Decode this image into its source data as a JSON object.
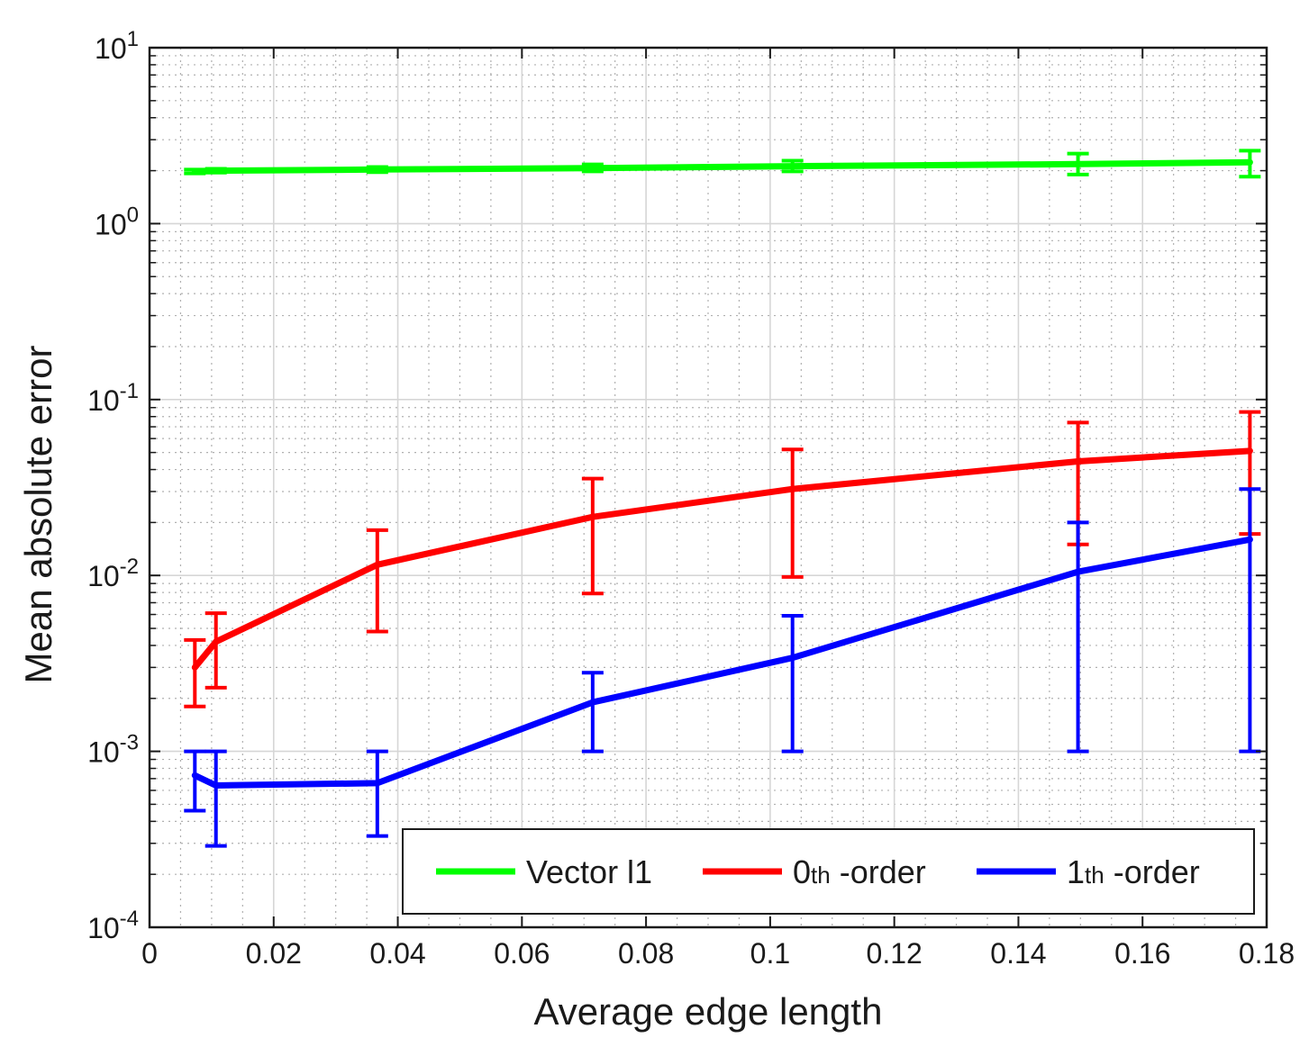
{
  "chart_data": {
    "type": "line",
    "xlabel": "Average edge length",
    "ylabel": "Mean absolute error",
    "xlim": [
      0,
      0.18
    ],
    "ylim": [
      0.0001,
      10
    ],
    "yscale": "log",
    "grid": true,
    "minor_grid": true,
    "legend_position": "bottom-right",
    "legend_orientation": "horizontal",
    "x_ticks": [
      "0",
      "0.02",
      "0.04",
      "0.06",
      "0.08",
      "0.1",
      "0.12",
      "0.14",
      "0.16",
      "0.18"
    ],
    "y_ticks": [
      {
        "base": "10",
        "exp": "-4"
      },
      {
        "base": "10",
        "exp": "-3"
      },
      {
        "base": "10",
        "exp": "-2"
      },
      {
        "base": "10",
        "exp": "-1"
      },
      {
        "base": "10",
        "exp": "0"
      },
      {
        "base": "10",
        "exp": "1"
      }
    ],
    "series": [
      {
        "name": "Vector l1",
        "color": "#00ff00",
        "x": [
          0.0073,
          0.0107,
          0.0367,
          0.0714,
          0.1036,
          0.1496,
          0.1773
        ],
        "y": [
          1.98,
          2.0,
          2.03,
          2.07,
          2.12,
          2.18,
          2.23
        ],
        "err_low": [
          1.93,
          1.95,
          1.96,
          1.98,
          1.98,
          1.9,
          1.85
        ],
        "err_high": [
          2.03,
          2.05,
          2.1,
          2.17,
          2.28,
          2.5,
          2.6
        ]
      },
      {
        "name": "0th-order",
        "name_main": "0",
        "name_sub": "th",
        "name_tail": " -order",
        "color": "#ff0000",
        "x": [
          0.0073,
          0.0107,
          0.0367,
          0.0714,
          0.1036,
          0.1496,
          0.1773
        ],
        "y": [
          0.003,
          0.0042,
          0.0115,
          0.0215,
          0.031,
          0.0445,
          0.051
        ],
        "err_low": [
          0.0018,
          0.0023,
          0.0048,
          0.0079,
          0.0098,
          0.015,
          0.0172
        ],
        "err_high": [
          0.0043,
          0.0061,
          0.0181,
          0.0355,
          0.052,
          0.074,
          0.085
        ]
      },
      {
        "name": "1th-order",
        "name_main": "1",
        "name_sub": "th",
        "name_tail": " -order",
        "color": "#0000ff",
        "x": [
          0.0073,
          0.0107,
          0.0367,
          0.0714,
          0.1036,
          0.1496,
          0.1773
        ],
        "y": [
          0.00073,
          0.00064,
          0.00066,
          0.0019,
          0.0034,
          0.0105,
          0.016
        ],
        "err_low": [
          0.00046,
          0.00029,
          0.00033,
          0.001,
          0.001,
          0.001,
          0.001
        ],
        "err_high": [
          0.001,
          0.001,
          0.001,
          0.0028,
          0.0059,
          0.02,
          0.031
        ]
      }
    ]
  }
}
